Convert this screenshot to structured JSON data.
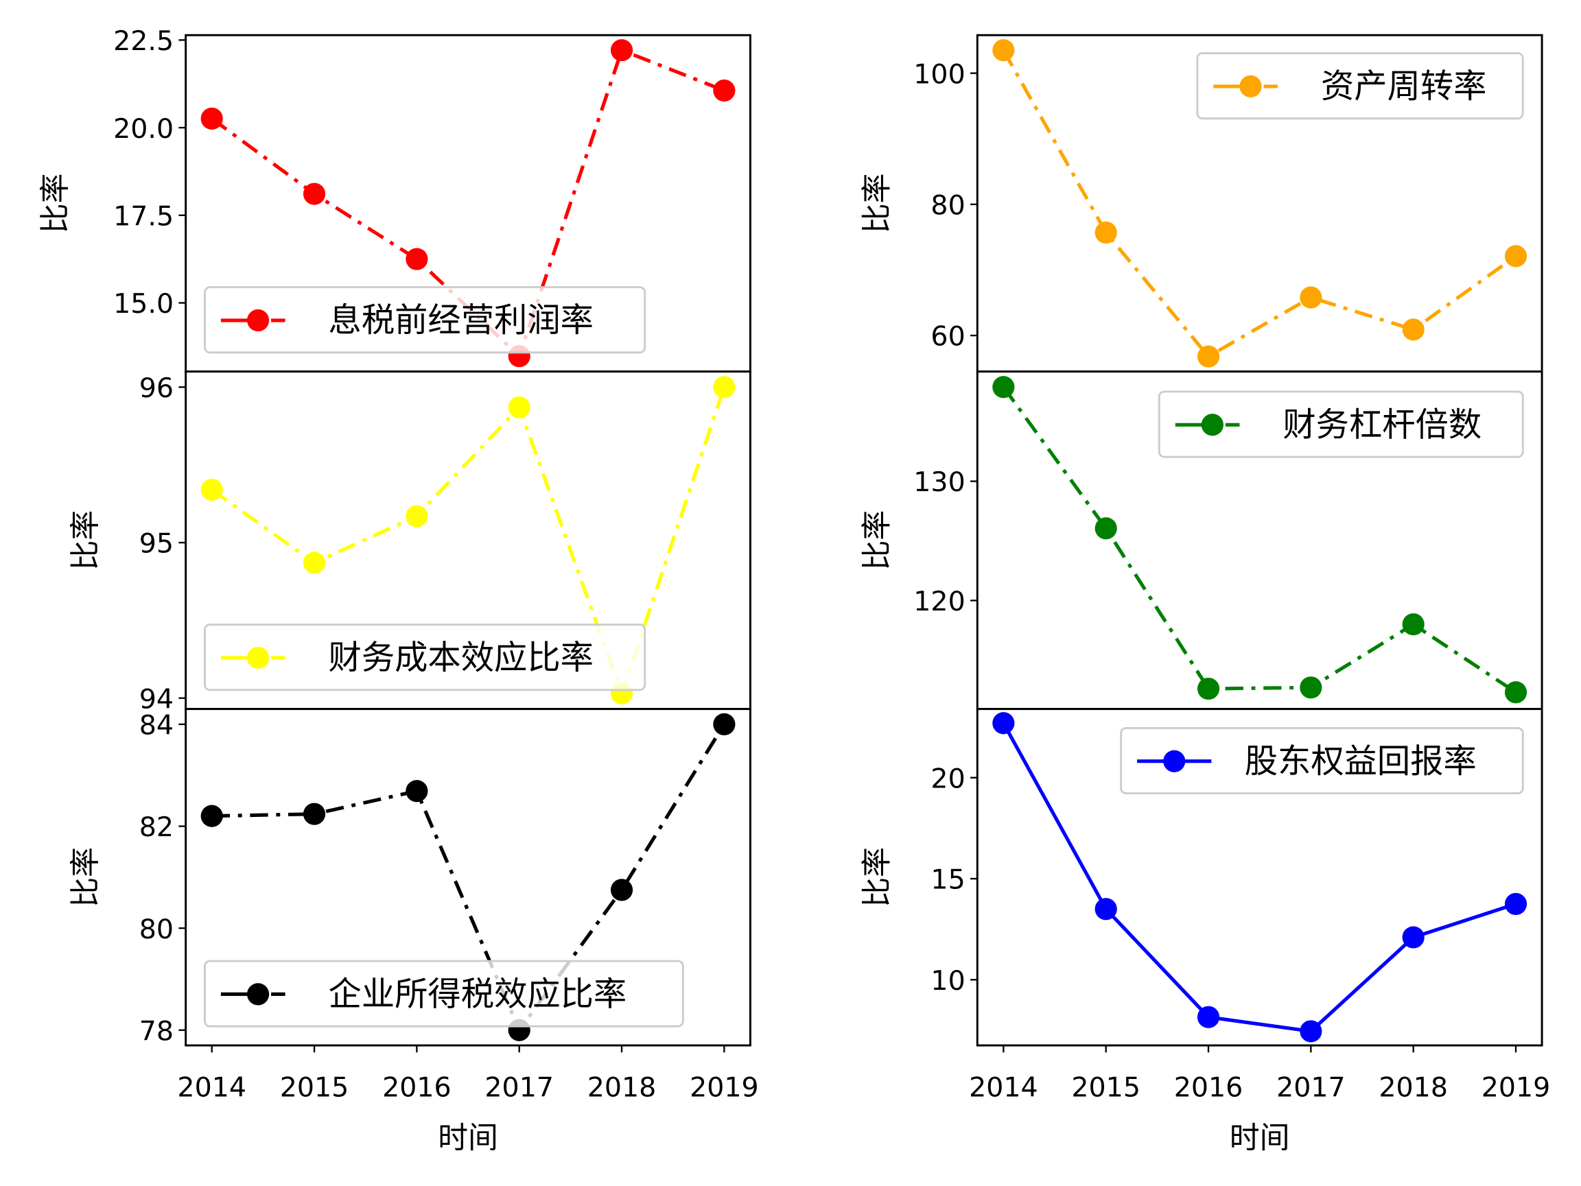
{
  "chart_data": [
    {
      "type": "line",
      "x": [
        2014,
        2015,
        2016,
        2017,
        2018,
        2019
      ],
      "series": [
        {
          "name": "息税前经营利润率",
          "values": [
            20.26,
            18.11,
            16.25,
            13.48,
            22.21,
            21.06
          ],
          "color": "#ff0000",
          "linestyle": "dashdot"
        }
      ],
      "ylabel": "比率",
      "xlabel": "",
      "ylim": [
        13.04,
        22.64
      ],
      "yticks": [
        15.0,
        17.5,
        20.0,
        22.5
      ],
      "ytick_labels": [
        "15.0",
        "17.5",
        "20.0",
        "22.5"
      ],
      "legend": "lower-left"
    },
    {
      "type": "line",
      "x": [
        2014,
        2015,
        2016,
        2017,
        2018,
        2019
      ],
      "series": [
        {
          "name": "资产周转率",
          "values": [
            103.5,
            75.7,
            56.8,
            65.8,
            60.9,
            72.1
          ],
          "color": "#ffa500",
          "linestyle": "dashdot"
        }
      ],
      "ylabel": "比率",
      "xlabel": "",
      "ylim": [
        54.5,
        105.8
      ],
      "yticks": [
        60,
        80,
        100
      ],
      "ytick_labels": [
        "60",
        "80",
        "100"
      ],
      "legend": "upper-right"
    },
    {
      "type": "line",
      "x": [
        2014,
        2015,
        2016,
        2017,
        2018,
        2019
      ],
      "series": [
        {
          "name": "财务成本效应比率",
          "values": [
            95.34,
            94.87,
            95.17,
            95.87,
            94.03,
            96.0
          ],
          "color": "#ffff00",
          "linestyle": "dashdot"
        }
      ],
      "ylabel": "比率",
      "xlabel": "",
      "ylim": [
        93.93,
        96.1
      ],
      "yticks": [
        94,
        95,
        96
      ],
      "ytick_labels": [
        "94",
        "95",
        "96"
      ],
      "legend": "lower-left"
    },
    {
      "type": "line",
      "x": [
        2014,
        2015,
        2016,
        2017,
        2018,
        2019
      ],
      "series": [
        {
          "name": "财务杠杆倍数",
          "values": [
            137.9,
            126.05,
            112.6,
            112.7,
            118.0,
            112.3
          ],
          "color": "#008000",
          "linestyle": "dashdot"
        }
      ],
      "ylabel": "比率",
      "xlabel": "",
      "ylim": [
        110.9,
        139.2
      ],
      "yticks": [
        120,
        130
      ],
      "ytick_labels": [
        "120",
        "130"
      ],
      "legend": "upper-right"
    },
    {
      "type": "line",
      "x": [
        2014,
        2015,
        2016,
        2017,
        2018,
        2019
      ],
      "series": [
        {
          "name": "企业所得税效应比率",
          "values": [
            82.2,
            82.24,
            82.69,
            78.0,
            80.75,
            84.0
          ],
          "color": "#000000",
          "linestyle": "dashdot"
        }
      ],
      "ylabel": "比率",
      "xlabel": "时间",
      "ylim": [
        77.7,
        84.3
      ],
      "yticks": [
        78,
        80,
        82,
        84
      ],
      "ytick_labels": [
        "78",
        "80",
        "82",
        "84"
      ],
      "xtick_labels": [
        "2014",
        "2015",
        "2016",
        "2017",
        "2018",
        "2019"
      ],
      "legend": "lower-left"
    },
    {
      "type": "line",
      "x": [
        2014,
        2015,
        2016,
        2017,
        2018,
        2019
      ],
      "series": [
        {
          "name": "股东权益回报率",
          "values": [
            22.7,
            13.5,
            8.15,
            7.45,
            12.1,
            13.75
          ],
          "color": "#0000ff",
          "linestyle": "solid"
        }
      ],
      "ylabel": "比率",
      "xlabel": "时间",
      "ylim": [
        6.75,
        23.4
      ],
      "yticks": [
        10,
        15,
        20
      ],
      "ytick_labels": [
        "10",
        "15",
        "20"
      ],
      "xtick_labels": [
        "2014",
        "2015",
        "2016",
        "2017",
        "2018",
        "2019"
      ],
      "legend": "upper-right"
    }
  ]
}
